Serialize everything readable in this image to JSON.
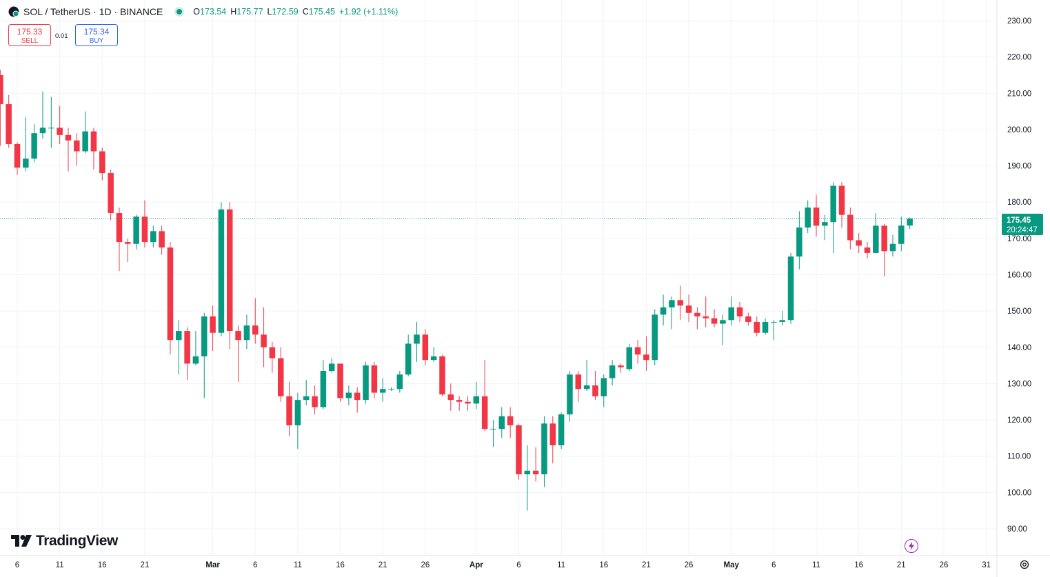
{
  "legend": {
    "symbol": "SOL / TetherUS · 1D · BINANCE",
    "open_label": "O",
    "open": "173.54",
    "high_label": "H",
    "high": "175.77",
    "low_label": "L",
    "low": "172.59",
    "close_label": "C",
    "close": "175.45",
    "change": "+1.92 (+1.11%)"
  },
  "trade": {
    "sell_price": "175.33",
    "sell_label": "SELL",
    "spread": "0.01",
    "buy_price": "175.34",
    "buy_label": "BUY"
  },
  "price_tag": {
    "price": "175.45",
    "countdown": "20:24:47"
  },
  "brand": "TradingView",
  "colors": {
    "up": "#089981",
    "down": "#f23645",
    "grid": "#f0f3fa",
    "text": "#131722"
  },
  "chart_data": {
    "type": "candlestick",
    "title": "SOL / TetherUS · 1D · BINANCE",
    "ylim": [
      86,
      234
    ],
    "y_ticks": [
      "90.00",
      "100.00",
      "110.00",
      "120.00",
      "130.00",
      "140.00",
      "150.00",
      "160.00",
      "170.00",
      "180.00",
      "190.00",
      "200.00",
      "210.00",
      "220.00",
      "230.00"
    ],
    "x_ticks": [
      {
        "label": "6",
        "day": 0
      },
      {
        "label": "11",
        "day": 5
      },
      {
        "label": "16",
        "day": 10
      },
      {
        "label": "21",
        "day": 15
      },
      {
        "label": "Mar",
        "day": 23
      },
      {
        "label": "6",
        "day": 28
      },
      {
        "label": "11",
        "day": 33
      },
      {
        "label": "16",
        "day": 38
      },
      {
        "label": "21",
        "day": 43
      },
      {
        "label": "26",
        "day": 48
      },
      {
        "label": "Apr",
        "day": 54
      },
      {
        "label": "6",
        "day": 59
      },
      {
        "label": "11",
        "day": 64
      },
      {
        "label": "16",
        "day": 69
      },
      {
        "label": "21",
        "day": 74
      },
      {
        "label": "26",
        "day": 79
      },
      {
        "label": "May",
        "day": 84
      },
      {
        "label": "6",
        "day": 89
      },
      {
        "label": "11",
        "day": 94
      },
      {
        "label": "16",
        "day": 99
      },
      {
        "label": "21",
        "day": 104
      },
      {
        "label": "26",
        "day": 109
      },
      {
        "label": "31",
        "day": 114
      }
    ],
    "first_day_offset": -2,
    "last_price": 175.45,
    "candles": [
      [
        215.0,
        207.0,
        216.5,
        195.5
      ],
      [
        207.0,
        196.0,
        209.5,
        195.0
      ],
      [
        196.0,
        189.5,
        196.5,
        187.5
      ],
      [
        189.5,
        192.0,
        203.5,
        188.5
      ],
      [
        192.0,
        199.0,
        201.5,
        191.0
      ],
      [
        199.0,
        200.5,
        210.5,
        197.5
      ],
      [
        200.5,
        200.5,
        209.0,
        195.0
      ],
      [
        200.5,
        198.5,
        206.5,
        196.0
      ],
      [
        198.5,
        197.0,
        200.5,
        188.5
      ],
      [
        197.0,
        194.0,
        199.0,
        190.0
      ],
      [
        194.0,
        199.5,
        205.0,
        193.5
      ],
      [
        199.5,
        194.0,
        200.5,
        189.0
      ],
      [
        194.0,
        188.0,
        195.0,
        186.0
      ],
      [
        188.0,
        177.0,
        189.0,
        175.0
      ],
      [
        177.0,
        169.0,
        178.5,
        161.0
      ],
      [
        169.0,
        168.5,
        170.0,
        163.5
      ],
      [
        168.5,
        176.0,
        176.5,
        167.0
      ],
      [
        176.0,
        169.0,
        180.5,
        167.5
      ],
      [
        169.0,
        172.0,
        173.5,
        167.5
      ],
      [
        172.0,
        167.5,
        173.5,
        165.5
      ],
      [
        167.5,
        142.0,
        169.0,
        138.0
      ],
      [
        142.0,
        144.5,
        147.5,
        132.5
      ],
      [
        144.5,
        135.5,
        145.5,
        131.0
      ],
      [
        135.5,
        137.5,
        144.5,
        135.0
      ],
      [
        137.5,
        148.5,
        149.5,
        126.0
      ],
      [
        148.5,
        144.0,
        151.5,
        139.0
      ],
      [
        144.0,
        178.0,
        180.0,
        143.0
      ],
      [
        178.0,
        144.5,
        180.0,
        139.5
      ],
      [
        144.5,
        142.0,
        146.0,
        130.5
      ],
      [
        142.0,
        146.0,
        149.0,
        139.5
      ],
      [
        146.0,
        143.5,
        153.5,
        141.0
      ],
      [
        143.5,
        140.0,
        151.0,
        134.5
      ],
      [
        140.0,
        137.0,
        141.5,
        133.0
      ],
      [
        137.0,
        126.5,
        140.0,
        125.0
      ],
      [
        126.5,
        118.5,
        130.5,
        115.5
      ],
      [
        118.5,
        125.5,
        127.5,
        112.0
      ],
      [
        125.5,
        126.5,
        131.0,
        124.0
      ],
      [
        126.5,
        123.5,
        129.5,
        121.5
      ],
      [
        123.5,
        133.5,
        136.5,
        123.0
      ],
      [
        133.5,
        135.5,
        137.0,
        133.0
      ],
      [
        135.5,
        126.0,
        135.5,
        125.0
      ],
      [
        126.0,
        127.5,
        129.5,
        124.0
      ],
      [
        127.5,
        125.5,
        129.0,
        122.0
      ],
      [
        125.5,
        135.0,
        136.0,
        124.5
      ],
      [
        135.0,
        127.5,
        136.0,
        126.0
      ],
      [
        127.5,
        128.5,
        131.5,
        125.0
      ],
      [
        128.5,
        128.5,
        129.0,
        128.0
      ],
      [
        128.5,
        132.5,
        133.5,
        127.5
      ],
      [
        132.5,
        141.0,
        143.5,
        132.0
      ],
      [
        141.0,
        143.5,
        147.0,
        136.0
      ],
      [
        143.5,
        136.5,
        145.0,
        135.0
      ],
      [
        136.5,
        137.5,
        140.0,
        136.0
      ],
      [
        137.5,
        127.0,
        138.0,
        126.5
      ],
      [
        127.0,
        125.5,
        130.0,
        122.5
      ],
      [
        125.5,
        125.0,
        126.5,
        122.5
      ],
      [
        125.0,
        124.5,
        126.5,
        122.5
      ],
      [
        124.5,
        126.5,
        130.5,
        123.0
      ],
      [
        126.5,
        117.5,
        136.5,
        117.0
      ],
      [
        117.5,
        117.5,
        120.0,
        112.5
      ],
      [
        117.5,
        121.0,
        123.5,
        115.0
      ],
      [
        121.0,
        118.5,
        123.5,
        115.0
      ],
      [
        118.5,
        105.0,
        119.0,
        103.5
      ],
      [
        105.0,
        106.0,
        113.0,
        95.0
      ],
      [
        106.0,
        105.0,
        112.5,
        103.0
      ],
      [
        105.0,
        119.0,
        121.0,
        101.5
      ],
      [
        119.0,
        113.0,
        121.0,
        108.0
      ],
      [
        113.0,
        121.5,
        122.0,
        112.0
      ],
      [
        121.5,
        132.5,
        133.5,
        119.5
      ],
      [
        132.5,
        128.5,
        133.5,
        125.0
      ],
      [
        128.5,
        129.5,
        136.5,
        128.0
      ],
      [
        129.5,
        126.5,
        133.5,
        125.5
      ],
      [
        126.5,
        131.5,
        132.5,
        123.5
      ],
      [
        131.5,
        135.0,
        136.5,
        129.5
      ],
      [
        135.0,
        134.5,
        135.5,
        133.0
      ],
      [
        134.0,
        140.0,
        141.0,
        133.5
      ],
      [
        140.0,
        138.0,
        142.0,
        135.5
      ],
      [
        138.0,
        136.5,
        143.0,
        133.5
      ],
      [
        136.5,
        149.0,
        150.5,
        135.0
      ],
      [
        149.0,
        151.0,
        154.5,
        146.0
      ],
      [
        151.0,
        153.0,
        154.0,
        145.0
      ],
      [
        153.0,
        151.5,
        157.0,
        147.5
      ],
      [
        151.5,
        149.5,
        154.5,
        147.0
      ],
      [
        149.5,
        148.5,
        151.0,
        145.0
      ],
      [
        148.5,
        148.0,
        154.0,
        145.5
      ],
      [
        148.0,
        146.5,
        150.5,
        145.5
      ],
      [
        146.5,
        147.5,
        149.0,
        140.5
      ],
      [
        147.5,
        151.0,
        154.0,
        146.0
      ],
      [
        151.0,
        148.5,
        152.5,
        147.0
      ],
      [
        148.5,
        147.0,
        149.5,
        146.0
      ],
      [
        147.0,
        144.0,
        148.5,
        143.0
      ],
      [
        144.0,
        147.0,
        148.0,
        143.5
      ],
      [
        147.0,
        147.0,
        147.5,
        142.0
      ],
      [
        147.0,
        147.5,
        150.0,
        146.0
      ],
      [
        147.5,
        165.0,
        166.0,
        146.5
      ],
      [
        165.0,
        173.0,
        177.5,
        161.5
      ],
      [
        173.0,
        178.5,
        180.5,
        171.5
      ],
      [
        178.5,
        173.5,
        182.0,
        170.5
      ],
      [
        173.5,
        174.5,
        176.5,
        169.5
      ],
      [
        174.5,
        184.5,
        185.5,
        166.0
      ],
      [
        184.5,
        176.5,
        185.5,
        173.0
      ],
      [
        176.5,
        169.5,
        178.5,
        167.0
      ],
      [
        169.5,
        168.0,
        171.5,
        166.0
      ],
      [
        167.5,
        166.0,
        169.0,
        164.5
      ],
      [
        166.0,
        173.5,
        177.0,
        166.0
      ],
      [
        173.5,
        166.5,
        174.0,
        159.5
      ],
      [
        166.5,
        168.5,
        171.0,
        165.0
      ],
      [
        168.5,
        173.54,
        176.0,
        166.5
      ],
      [
        173.54,
        175.45,
        175.77,
        172.59
      ]
    ]
  }
}
